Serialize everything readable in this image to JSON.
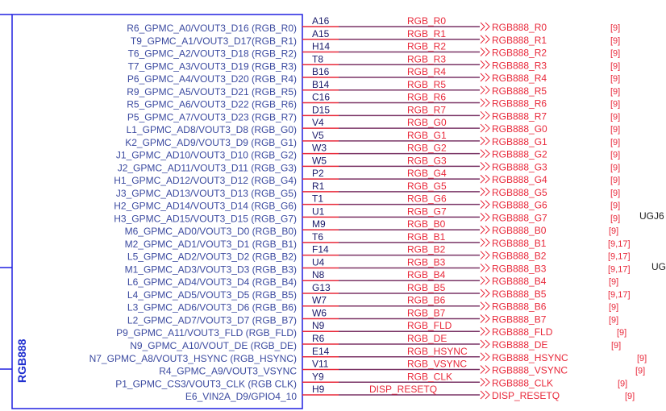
{
  "component": {
    "title": "RGB888",
    "pins": [
      {
        "func": "R6_GPMC_A0/VOUT3_D16 (RGB_R0)",
        "num": "A16",
        "net": "RGB_R0",
        "port": "RGB888_R0",
        "ref": "[9]"
      },
      {
        "func": "T9_GPMC_A1/VOUT3_D17(RGB_R1)",
        "num": "A15",
        "net": "RGB_R1",
        "port": "RGB888_R1",
        "ref": "[9]"
      },
      {
        "func": "T6_GPMC_A2/VOUT3_D18 (RGB_R2)",
        "num": "H14",
        "net": "RGB_R2",
        "port": "RGB888_R2",
        "ref": "[9]"
      },
      {
        "func": "T7_GPMC_A3/VOUT3_D19 (RGB_R3)",
        "num": "T8",
        "net": "RGB_R3",
        "port": "RGB888_R3",
        "ref": "[9]"
      },
      {
        "func": "P6_GPMC_A4/VOUT3_D20 (RGB_R4)",
        "num": "B16",
        "net": "RGB_R4",
        "port": "RGB888_R4",
        "ref": "[9]"
      },
      {
        "func": "R9_GPMC_A5/VOUT3_D21 (RGB_R5)",
        "num": "B14",
        "net": "RGB_R5",
        "port": "RGB888_R5",
        "ref": "[9]"
      },
      {
        "func": "R5_GPMC_A6/VOUT3_D22 (RGB_R6)",
        "num": "C16",
        "net": "RGB_R6",
        "port": "RGB888_R6",
        "ref": "[9]"
      },
      {
        "func": "P5_GPMC_A7/VOUT3_D23 (RGB_R7)",
        "num": "D15",
        "net": "RGB_R7",
        "port": "RGB888_R7",
        "ref": "[9]"
      },
      {
        "func": "L1_GPMC_AD8/VOUT3_D8 (RGB_G0)",
        "num": "V4",
        "net": "RGB_G0",
        "port": "RGB888_G0",
        "ref": "[9]"
      },
      {
        "func": "K2_GPMC_AD9/VOUT3_D9 (RGB_G1)",
        "num": "V5",
        "net": "RGB_G1",
        "port": "RGB888_G1",
        "ref": "[9]"
      },
      {
        "func": "J1_GPMC_AD10/VOUT3_D10 (RGB_G2)",
        "num": "W3",
        "net": "RGB_G2",
        "port": "RGB888_G2",
        "ref": "[9]"
      },
      {
        "func": "J2_GPMC_AD11/VOUT3_D11 (RGB_G3)",
        "num": "W5",
        "net": "RGB_G3",
        "port": "RGB888_G3",
        "ref": "[9]"
      },
      {
        "func": "H1_GPMC_AD12/VOUT3_D12 (RGB_G4)",
        "num": "P2",
        "net": "RGB_G4",
        "port": "RGB888_G4",
        "ref": "[9]"
      },
      {
        "func": "J3_GPMC_AD13/VOUT3_D13 (RGB_G5)",
        "num": "R1",
        "net": "RGB_G5",
        "port": "RGB888_G5",
        "ref": "[9]"
      },
      {
        "func": "H2_GPMC_AD14/VOUT3_D14 (RGB_G6)",
        "num": "T1",
        "net": "RGB_G6",
        "port": "RGB888_G6",
        "ref": "[9]"
      },
      {
        "func": "H3_GPMC_AD15/VOUT3_D15 (RGB_G7)",
        "num": "U1",
        "net": "RGB_G7",
        "port": "RGB888_G7",
        "ref": "[9]"
      },
      {
        "func": "M6_GPMC_AD0/VOUT3_D0 (RGB_B0)",
        "num": "M9",
        "net": "RGB_B0",
        "port": "RGB888_B0",
        "ref": "[9]"
      },
      {
        "func": "M2_GPMC_AD1/VOUT3_D1 (RGB_B1)",
        "num": "T6",
        "net": "RGB_B1",
        "port": "RGB888_B1",
        "ref": "[9,17]"
      },
      {
        "func": "L5_GPMC_AD2/VOUT3_D2 (RGB_B2)",
        "num": "F14",
        "net": "RGB_B2",
        "port": "RGB888_B2",
        "ref": "[9,17]"
      },
      {
        "func": "M1_GPMC_AD3/VOUT3_D3 (RGB_B3)",
        "num": "U4",
        "net": "RGB_B3",
        "port": "RGB888_B3",
        "ref": "[9,17]"
      },
      {
        "func": "L6_GPMC_AD4/VOUT3_D4 (RGB_B4)",
        "num": "N8",
        "net": "RGB_B4",
        "port": "RGB888_B4",
        "ref": "[9]"
      },
      {
        "func": "L4_GPMC_AD5/VOUT3_D5 (RGB_B5)",
        "num": "G13",
        "net": "RGB_B5",
        "port": "RGB888_B5",
        "ref": "[9,17]"
      },
      {
        "func": "L3_GPMC_AD6/VOUT3_D6 (RGB_B6)",
        "num": "W7",
        "net": "RGB_B6",
        "port": "RGB888_B6",
        "ref": "[9]"
      },
      {
        "func": "L2_GPMC_AD7/VOUT3_D7 (RGB_B7)",
        "num": "W6",
        "net": "RGB_B7",
        "port": "RGB888_B7",
        "ref": "[9]"
      },
      {
        "func": "P9_GPMC_A11/VOUT3_FLD (RGB_FLD)",
        "num": "N9",
        "net": "RGB_FLD",
        "port": "RGB888_FLD",
        "ref": "[9]"
      },
      {
        "func": "N9_GPMC_A10/VOUT_DE (RGB_DE)",
        "num": "R6",
        "net": "RGB_DE",
        "port": "RGB888_DE",
        "ref": "[9]"
      },
      {
        "func": "N7_GPMC_A8/VOUT3_HSYNC (RGB_HSYNC)",
        "num": "E14",
        "net": "RGB_HSYNC",
        "port": "RGB888_HSYNC",
        "ref": "[9]"
      },
      {
        "func": "R4_GPMC_A9/VOUT3_VSYNC",
        "num": "V11",
        "net": "RGB_VSYNC",
        "port": "RGB888_VSYNC",
        "ref": "[9]"
      },
      {
        "func": "P1_GPMC_CS3/VOUT3_CLK (RGB CLK)",
        "num": "Y9",
        "net": "RGB_CLK",
        "port": "RGB888_CLK",
        "ref": "[9]"
      },
      {
        "func": "E6_VIN2A_D9/GPIO4_10",
        "num": "H9",
        "net": "DISP_RESETQ",
        "port": "DISP_RESETQ",
        "ref": "[9]"
      }
    ]
  },
  "side_labels": [
    "UGJ6",
    "UG"
  ],
  "colors": {
    "box": "#2020e0",
    "pin_text": "#3b4aa0",
    "net": "#e8283a",
    "wire_dark": "#7a3466"
  }
}
